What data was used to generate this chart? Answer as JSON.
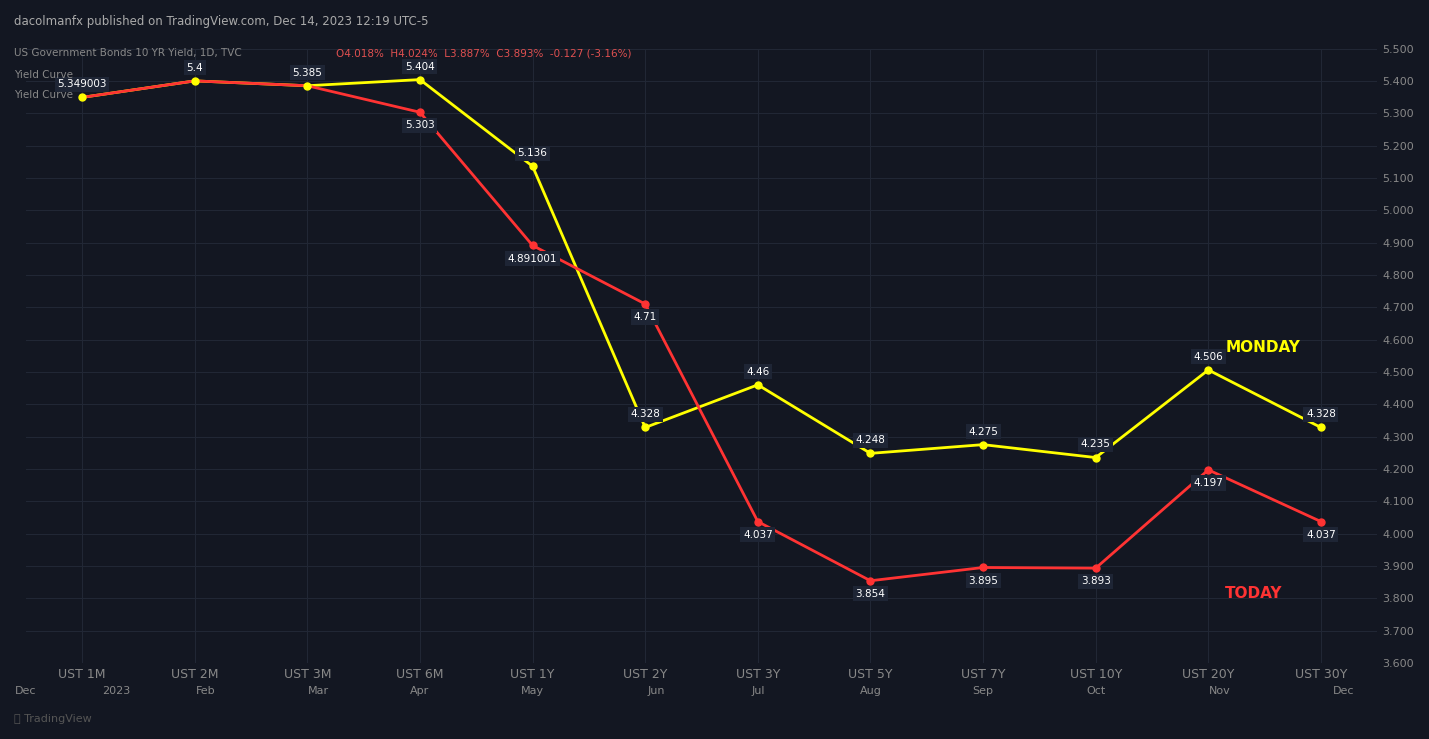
{
  "background_color": "#131722",
  "plot_bg_color": "#131722",
  "title_text": "dacolmanfx published on TradingView.com, Dec 14, 2023 12:19 UTC-5",
  "subtitle_line1": "US Government Bonds 10 YR Yield, 1D, TVC  O4.018%  H4.024%  L3.887%  C3.893%  -0.127 (-3.16%)",
  "subtitle_line2": "Yield Curve",
  "subtitle_line3": "Yield Curve",
  "x_labels": [
    "UST 1M",
    "UST 2M",
    "UST 3M",
    "UST 6M",
    "UST 1Y",
    "UST 2Y",
    "UST 3Y",
    "UST 5Y",
    "UST 7Y",
    "UST 10Y",
    "UST 20Y",
    "UST 30Y"
  ],
  "x_positions": [
    0,
    1,
    2,
    3,
    4,
    5,
    6,
    7,
    8,
    9,
    10,
    11
  ],
  "monday_values": [
    5.349003,
    5.4,
    5.385,
    5.404,
    5.136,
    4.328,
    4.46,
    4.248,
    4.275,
    4.235,
    4.506,
    4.328
  ],
  "monday_labels": [
    "5.349003",
    "5.4",
    "5.385",
    "5.404",
    "5.136",
    "4.328",
    "4.46",
    "4.248",
    "4.275",
    "4.235",
    "4.506",
    "4.328"
  ],
  "today_values": [
    5.349003,
    5.4,
    5.385,
    5.303,
    4.891001,
    4.71,
    4.037,
    3.854,
    3.895,
    3.893,
    4.197,
    4.037
  ],
  "today_labels": [
    "",
    "",
    "",
    "5.303",
    "4.891001",
    "4.71",
    "4.037",
    "3.854",
    "3.895",
    "3.893",
    "4.197",
    "4.037"
  ],
  "monday_color": "#ffff00",
  "today_color": "#ff3333",
  "grid_color": "#222836",
  "tick_color": "#888888",
  "label_bg": "#1e2535",
  "y_min": 3.6,
  "y_max": 5.5,
  "y_ticks": [
    3.6,
    3.7,
    3.8,
    3.9,
    4.0,
    4.1,
    4.2,
    4.3,
    4.4,
    4.5,
    4.6,
    4.7,
    4.8,
    4.9,
    5.0,
    5.1,
    5.2,
    5.3,
    5.4,
    5.5
  ],
  "bottom_labels": [
    "Dec",
    "2023",
    "Feb",
    "Mar",
    "Apr",
    "May",
    "Jun",
    "Jul",
    "Aug",
    "Sep",
    "Oct",
    "Nov",
    "Dec"
  ],
  "tv_logo_color": "#888888"
}
